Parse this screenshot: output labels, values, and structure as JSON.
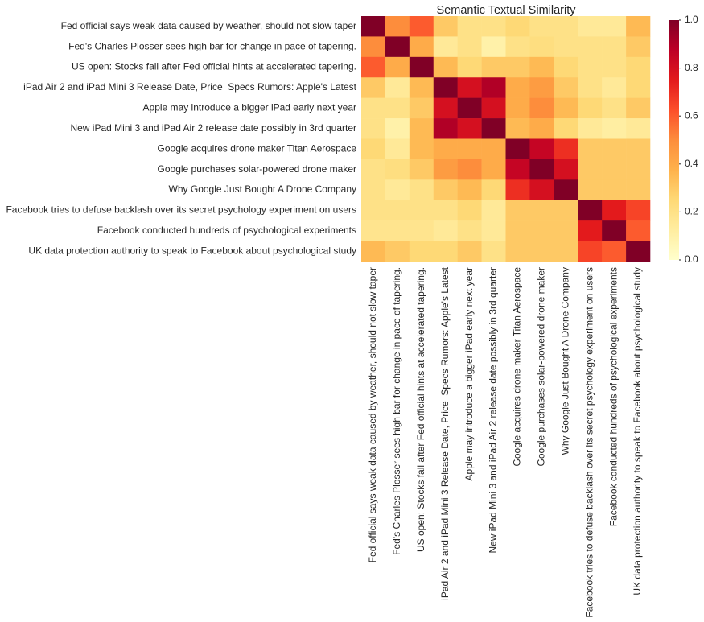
{
  "chart_data": {
    "type": "heatmap",
    "title": "Semantic Textual Similarity",
    "categories": [
      "Fed official says weak data caused by weather, should not slow taper",
      "Fed's Charles Plosser sees high bar for change in pace of tapering.",
      "US open: Stocks fall after Fed official hints at accelerated tapering.",
      "iPad Air 2 and iPad Mini 3 Release Date, Price  Specs Rumors: Apple's Latest",
      "Apple may introduce a bigger iPad early next year",
      "New iPad Mini 3 and iPad Air 2 release date possibly in 3rd quarter",
      "Google acquires drone maker Titan Aerospace",
      "Google purchases solar-powered drone maker",
      "Why Google Just Bought A Drone Company",
      "Facebook tries to defuse backlash over its secret psychology experiment on users",
      "Facebook conducted hundreds of psychological experiments",
      "UK data protection authority to speak to Facebook about psychological study"
    ],
    "values": [
      [
        1.0,
        0.5,
        0.6,
        0.3,
        0.2,
        0.2,
        0.25,
        0.2,
        0.2,
        0.15,
        0.15,
        0.35
      ],
      [
        0.5,
        1.0,
        0.4,
        0.15,
        0.2,
        0.1,
        0.2,
        0.22,
        0.2,
        0.2,
        0.2,
        0.3
      ],
      [
        0.6,
        0.4,
        1.0,
        0.35,
        0.25,
        0.3,
        0.3,
        0.35,
        0.25,
        0.2,
        0.2,
        0.25
      ],
      [
        0.3,
        0.15,
        0.35,
        1.0,
        0.8,
        0.9,
        0.4,
        0.45,
        0.3,
        0.2,
        0.15,
        0.25
      ],
      [
        0.2,
        0.2,
        0.3,
        0.8,
        1.0,
        0.8,
        0.4,
        0.5,
        0.35,
        0.25,
        0.2,
        0.3
      ],
      [
        0.2,
        0.1,
        0.35,
        0.9,
        0.8,
        1.0,
        0.35,
        0.4,
        0.25,
        0.15,
        0.12,
        0.15
      ],
      [
        0.25,
        0.15,
        0.35,
        0.4,
        0.4,
        0.4,
        1.0,
        0.85,
        0.7,
        0.3,
        0.3,
        0.3
      ],
      [
        0.2,
        0.22,
        0.3,
        0.45,
        0.5,
        0.4,
        0.85,
        1.0,
        0.8,
        0.3,
        0.3,
        0.3
      ],
      [
        0.2,
        0.15,
        0.2,
        0.3,
        0.35,
        0.25,
        0.7,
        0.8,
        1.0,
        0.3,
        0.3,
        0.3
      ],
      [
        0.2,
        0.2,
        0.2,
        0.2,
        0.25,
        0.15,
        0.3,
        0.3,
        0.3,
        1.0,
        0.75,
        0.65
      ],
      [
        0.18,
        0.18,
        0.18,
        0.15,
        0.2,
        0.15,
        0.3,
        0.3,
        0.3,
        0.75,
        1.0,
        0.6
      ],
      [
        0.35,
        0.3,
        0.25,
        0.25,
        0.3,
        0.2,
        0.3,
        0.3,
        0.3,
        0.65,
        0.6,
        1.0
      ]
    ],
    "colormap": "YlOrRd",
    "zlim": [
      0,
      1
    ],
    "zticks": [
      {
        "value": 0,
        "label": "0.0"
      },
      0.2,
      0.4,
      0.6,
      0.8,
      {
        "value": 1,
        "label": "1.0"
      }
    ]
  }
}
